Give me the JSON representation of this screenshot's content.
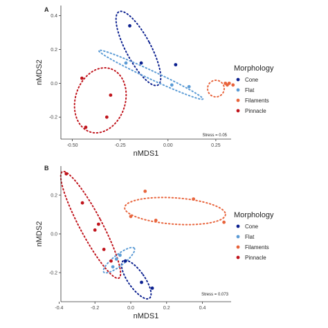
{
  "chart_data": [
    {
      "type": "scatter",
      "panel_label": "A",
      "xlabel": "nMDS1",
      "ylabel": "nMDS2",
      "xlim": [
        -0.56,
        0.33
      ],
      "ylim": [
        -0.33,
        0.46
      ],
      "xticks": [
        -0.5,
        -0.25,
        0.0,
        0.25
      ],
      "xtick_labels": [
        "-0.50",
        "-0.25",
        "0.00",
        "0.25"
      ],
      "yticks": [
        -0.2,
        0.0,
        0.2,
        0.4
      ],
      "ytick_labels": [
        "-0.2",
        "0.0",
        "0.2",
        "0.4"
      ],
      "grid": false,
      "annotation": "Stress = 0.05",
      "series": [
        {
          "name": "Cone",
          "color": "#0a1f8f",
          "x": [
            -0.2,
            -0.14,
            0.04
          ],
          "y": [
            0.34,
            0.12,
            0.11
          ]
        },
        {
          "name": "Flat",
          "color": "#5b9bd5",
          "x": [
            -0.22,
            0.02,
            0.11
          ],
          "y": [
            0.12,
            -0.01,
            -0.02
          ]
        },
        {
          "name": "Filaments",
          "color": "#e8643c",
          "x": [
            0.3,
            0.31,
            0.32,
            0.34
          ],
          "y": [
            0.0,
            -0.01,
            0.0,
            -0.01
          ]
        },
        {
          "name": "Pinnacle",
          "color": "#c0141c",
          "x": [
            -0.45,
            -0.32,
            -0.3,
            -0.43
          ],
          "y": [
            0.03,
            -0.2,
            -0.07,
            -0.26
          ]
        }
      ]
    },
    {
      "type": "scatter",
      "panel_label": "B",
      "xlabel": "nMDS1",
      "ylabel": "nMDS2",
      "xlim": [
        -0.39,
        0.56
      ],
      "ylim": [
        -0.35,
        0.35
      ],
      "xticks": [
        -0.4,
        -0.2,
        0.0,
        0.2,
        0.4
      ],
      "xtick_labels": [
        "-0.4",
        "-0.2",
        "0.0",
        "0.2",
        "0.4"
      ],
      "yticks": [
        -0.2,
        0.0,
        0.2
      ],
      "ytick_labels": [
        "-0.2",
        "0.0",
        "0.2"
      ],
      "grid": false,
      "annotation": "Stress = 0.073",
      "series": [
        {
          "name": "Cone",
          "color": "#0a1f8f",
          "x": [
            -0.03,
            0.06,
            0.12
          ],
          "y": [
            -0.14,
            -0.25,
            -0.28
          ]
        },
        {
          "name": "Flat",
          "color": "#5b9bd5",
          "x": [
            -0.1,
            -0.08,
            -0.06
          ],
          "y": [
            -0.17,
            -0.13,
            -0.11
          ]
        },
        {
          "name": "Filaments",
          "color": "#e8643c",
          "x": [
            0.08,
            0.0,
            0.14,
            0.35,
            0.52
          ],
          "y": [
            0.22,
            0.09,
            0.07,
            0.18,
            0.06
          ]
        },
        {
          "name": "Pinnacle",
          "color": "#c0141c",
          "x": [
            -0.36,
            -0.27,
            -0.2,
            -0.18,
            -0.15,
            -0.11
          ],
          "y": [
            0.31,
            0.16,
            0.02,
            0.05,
            -0.08,
            -0.14
          ]
        }
      ]
    }
  ],
  "legend": {
    "title": "Morphology",
    "entries": [
      {
        "label": "Cone",
        "color": "#0a1f8f"
      },
      {
        "label": "Flat",
        "color": "#5b9bd5"
      },
      {
        "label": "Filaments",
        "color": "#e8643c"
      },
      {
        "label": "Pinnacle",
        "color": "#c0141c"
      }
    ]
  }
}
